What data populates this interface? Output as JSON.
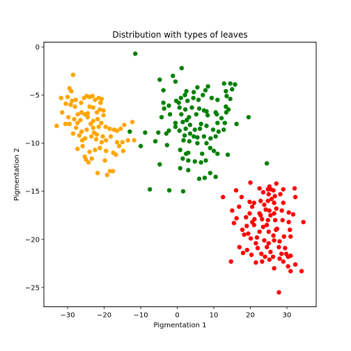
{
  "chart_data": {
    "type": "scatter",
    "title": "Distribution with types of leaves",
    "xlabel": "Pigmentation 1",
    "ylabel": "Pigmentation 2",
    "xlim": [
      -36.5,
      38
    ],
    "ylim": [
      -27,
      0.5
    ],
    "xticks": [
      -30,
      -20,
      -10,
      0,
      10,
      20,
      30
    ],
    "yticks": [
      0,
      -5,
      -10,
      -15,
      -20,
      -25
    ],
    "grid": false,
    "series": [
      {
        "color": "#ffa500",
        "points": [
          [
            -28.5,
            -2.9
          ],
          [
            -29.5,
            -4.3
          ],
          [
            -29,
            -4.6
          ],
          [
            -31.8,
            -5.3
          ],
          [
            -30,
            -5.2
          ],
          [
            -27.8,
            -5.5
          ],
          [
            -26.3,
            -5.8
          ],
          [
            -25.5,
            -5.3
          ],
          [
            -24.8,
            -5.1
          ],
          [
            -24,
            -5.2
          ],
          [
            -23.2,
            -5.1
          ],
          [
            -22.5,
            -5.5
          ],
          [
            -21.5,
            -5.3
          ],
          [
            -20.7,
            -5.4
          ],
          [
            -21.2,
            -6.5
          ],
          [
            -23,
            -6.3
          ],
          [
            -24.5,
            -6.9
          ],
          [
            -26.2,
            -6.8
          ],
          [
            -28,
            -6.2
          ],
          [
            -29.2,
            -6.0
          ],
          [
            -30.5,
            -5.9
          ],
          [
            -31.5,
            -6.8
          ],
          [
            -29.8,
            -7.3
          ],
          [
            -28.2,
            -7.5
          ],
          [
            -26.5,
            -7.6
          ],
          [
            -24.5,
            -7.3
          ],
          [
            -23,
            -7.7
          ],
          [
            -21.8,
            -7.5
          ],
          [
            -20.8,
            -7.9
          ],
          [
            -19.6,
            -8.3
          ],
          [
            -21.5,
            -8.3
          ],
          [
            -23,
            -8.4
          ],
          [
            -24.8,
            -8.6
          ],
          [
            -26.2,
            -8.8
          ],
          [
            -27.7,
            -8.4
          ],
          [
            -29.5,
            -8.0
          ],
          [
            -30.6,
            -8.0
          ],
          [
            -33,
            -8.2
          ],
          [
            -28.5,
            -9.0
          ],
          [
            -26.8,
            -9.2
          ],
          [
            -25.2,
            -9.5
          ],
          [
            -23.5,
            -9.3
          ],
          [
            -22.2,
            -9.6
          ],
          [
            -20.7,
            -9.9
          ],
          [
            -19.5,
            -9.7
          ],
          [
            -18.2,
            -9.3
          ],
          [
            -16.5,
            -8.7
          ],
          [
            -15.5,
            -8.5
          ],
          [
            -17.3,
            -8.6
          ],
          [
            -14.5,
            -8.1
          ],
          [
            -12.3,
            -7.8
          ],
          [
            -11.8,
            -9.7
          ],
          [
            -13.5,
            -9.7
          ],
          [
            -15,
            -9.9
          ],
          [
            -16.5,
            -9.9
          ],
          [
            -14.8,
            -10.8
          ],
          [
            -17.5,
            -11.0
          ],
          [
            -19.5,
            -10.8
          ],
          [
            -21.2,
            -10.5
          ],
          [
            -22.5,
            -10.7
          ],
          [
            -24,
            -10.9
          ],
          [
            -25.3,
            -11.4
          ],
          [
            -25.9,
            -10.3
          ],
          [
            -27.3,
            -10.6
          ],
          [
            -24.3,
            -12.0
          ],
          [
            -23.4,
            -11.6
          ],
          [
            -19.8,
            -11.8
          ],
          [
            -18.4,
            -12.9
          ],
          [
            -17.6,
            -12.9
          ],
          [
            -19.2,
            -13.3
          ],
          [
            -21.8,
            -13.1
          ],
          [
            -25,
            -11.7
          ],
          [
            -22,
            -9.1
          ],
          [
            -20.2,
            -7.1
          ],
          [
            -22,
            -6.8
          ],
          [
            -25.3,
            -7.0
          ],
          [
            -27.2,
            -7.0
          ],
          [
            -22.8,
            -8.9
          ],
          [
            -26,
            -9.7
          ],
          [
            -18.5,
            -8.5
          ],
          [
            -20.2,
            -6.6
          ],
          [
            -24,
            -6.2
          ],
          [
            -21,
            -5.8
          ],
          [
            -28.8,
            -5.6
          ],
          [
            -23.7,
            -8.0
          ],
          [
            -16.8,
            -11.2
          ],
          [
            -20.4,
            -9.3
          ],
          [
            -15.9,
            -10.3
          ],
          [
            -27.3,
            -7.9
          ]
        ]
      },
      {
        "color": "#008000",
        "points": [
          [
            -11.5,
            -0.7
          ],
          [
            1.2,
            -2.2
          ],
          [
            -1.2,
            -3.0
          ],
          [
            -0.5,
            -3.6
          ],
          [
            -4.8,
            -3.4
          ],
          [
            -3.8,
            -4.5
          ],
          [
            2.5,
            -4.6
          ],
          [
            4.5,
            -4.7
          ],
          [
            5.5,
            -4.2
          ],
          [
            7.7,
            -4.5
          ],
          [
            8.4,
            -4.1
          ],
          [
            12.8,
            -3.8
          ],
          [
            14.5,
            -3.8
          ],
          [
            15.8,
            -3.9
          ],
          [
            13.3,
            -4.6
          ],
          [
            15.0,
            -4.4
          ],
          [
            2.1,
            -5.0
          ],
          [
            1.0,
            -5.3
          ],
          [
            -0.3,
            -5.6
          ],
          [
            0.4,
            -5.8
          ],
          [
            2.8,
            -5.6
          ],
          [
            4.4,
            -5.3
          ],
          [
            5.8,
            -5.5
          ],
          [
            7.0,
            -5.0
          ],
          [
            9.4,
            -5.3
          ],
          [
            11.0,
            -5.5
          ],
          [
            13.5,
            -5.1
          ],
          [
            14.5,
            -5.4
          ],
          [
            -3.8,
            -5.8
          ],
          [
            -2.3,
            -6.1
          ],
          [
            -3.6,
            -6.4
          ],
          [
            0.6,
            -6.3
          ],
          [
            2.2,
            -6.5
          ],
          [
            4.0,
            -6.3
          ],
          [
            6.0,
            -6.4
          ],
          [
            7.3,
            -6.6
          ],
          [
            8.0,
            -6.7
          ],
          [
            10.5,
            -6.8
          ],
          [
            13.3,
            -6.2
          ],
          [
            14.0,
            -6.5
          ],
          [
            -4.3,
            -7.3
          ],
          [
            -2.0,
            -7.0
          ],
          [
            1.1,
            -7.0
          ],
          [
            3.2,
            -7.3
          ],
          [
            5.2,
            -7.0
          ],
          [
            8.3,
            -7.1
          ],
          [
            10.8,
            -7.0
          ],
          [
            12.1,
            -7.4
          ],
          [
            19.5,
            -7.3
          ],
          [
            -0.5,
            -7.9
          ],
          [
            1.5,
            -7.8
          ],
          [
            3.5,
            -8.1
          ],
          [
            6.5,
            -8.0
          ],
          [
            8.0,
            -8.2
          ],
          [
            11.0,
            -7.9
          ],
          [
            13.0,
            -7.9
          ],
          [
            -8.8,
            -8.9
          ],
          [
            -5.2,
            -8.9
          ],
          [
            -2.3,
            -8.7
          ],
          [
            -0.5,
            -8.3
          ],
          [
            0.6,
            -8.7
          ],
          [
            2.3,
            -8.5
          ],
          [
            4.8,
            -8.6
          ],
          [
            6.2,
            -8.5
          ],
          [
            9.8,
            -8.6
          ],
          [
            11.3,
            -8.8
          ],
          [
            12.7,
            -8.6
          ],
          [
            -3.0,
            -9.0
          ],
          [
            2.0,
            -9.2
          ],
          [
            3.5,
            -9.0
          ],
          [
            4.5,
            -9.3
          ],
          [
            5.5,
            -9.4
          ],
          [
            7.3,
            -9.3
          ],
          [
            9.1,
            -9.5
          ],
          [
            10.5,
            -9.3
          ],
          [
            -6.0,
            -9.8
          ],
          [
            1.7,
            -9.7
          ],
          [
            3.3,
            -9.8
          ],
          [
            5.5,
            -10.0
          ],
          [
            8.0,
            -10.0
          ],
          [
            -2.8,
            -10.2
          ],
          [
            9.0,
            -10.5
          ],
          [
            10.0,
            -10.8
          ],
          [
            0.8,
            -10.7
          ],
          [
            3.0,
            -11.0
          ],
          [
            2.4,
            -11.1
          ],
          [
            6.8,
            -11.1
          ],
          [
            11.0,
            -11.1
          ],
          [
            13.8,
            -11.2
          ],
          [
            1.5,
            -11.6
          ],
          [
            3.0,
            -11.8
          ],
          [
            4.8,
            -11.9
          ],
          [
            6.5,
            -12.0
          ],
          [
            7.8,
            -11.8
          ],
          [
            -4.8,
            -12.2
          ],
          [
            24.5,
            -12.1
          ],
          [
            0.8,
            -12.6
          ],
          [
            3.0,
            -12.8
          ],
          [
            9.0,
            -13.1
          ],
          [
            10.5,
            -13.5
          ],
          [
            6.0,
            -13.7
          ],
          [
            7.5,
            -13.6
          ],
          [
            -7.5,
            -14.8
          ],
          [
            -2.2,
            -14.9
          ],
          [
            1.6,
            -15.0
          ],
          [
            -13,
            -8.8
          ],
          [
            -10,
            -10.3
          ],
          [
            16.2,
            -8.0
          ],
          [
            13.4,
            -6.8
          ],
          [
            2.6,
            -7.6
          ]
        ]
      },
      {
        "color": "#ff0000",
        "points": [
          [
            20.0,
            -14.1
          ],
          [
            27.1,
            -14.2
          ],
          [
            25.2,
            -14.5
          ],
          [
            22.5,
            -14.7
          ],
          [
            24.8,
            -14.8
          ],
          [
            25.6,
            -14.8
          ],
          [
            26.3,
            -14.9
          ],
          [
            29.0,
            -14.8
          ],
          [
            32.1,
            -14.7
          ],
          [
            16.1,
            -14.9
          ],
          [
            23.5,
            -15.1
          ],
          [
            25.0,
            -15.3
          ],
          [
            26.7,
            -15.5
          ],
          [
            28.2,
            -15.3
          ],
          [
            32.3,
            -15.6
          ],
          [
            17.6,
            -15.6
          ],
          [
            12.5,
            -15.6
          ],
          [
            19.8,
            -16.1
          ],
          [
            21.0,
            -16.2
          ],
          [
            22.8,
            -16.0
          ],
          [
            24.8,
            -16.0
          ],
          [
            26.5,
            -16.2
          ],
          [
            29.0,
            -16.2
          ],
          [
            20.5,
            -16.6
          ],
          [
            24.2,
            -16.9
          ],
          [
            25.2,
            -17.0
          ],
          [
            27.1,
            -16.8
          ],
          [
            28.6,
            -17.0
          ],
          [
            16.9,
            -16.6
          ],
          [
            15.0,
            -17.0
          ],
          [
            19.8,
            -17.3
          ],
          [
            22.5,
            -17.3
          ],
          [
            25.5,
            -17.5
          ],
          [
            26.5,
            -17.3
          ],
          [
            30.5,
            -17.2
          ],
          [
            31.7,
            -17.4
          ],
          [
            16.2,
            -17.8
          ],
          [
            18.8,
            -17.7
          ],
          [
            21.1,
            -17.9
          ],
          [
            23.2,
            -17.9
          ],
          [
            24.8,
            -18.0
          ],
          [
            26.8,
            -18.0
          ],
          [
            28.8,
            -18.0
          ],
          [
            30.5,
            -18.2
          ],
          [
            34.5,
            -18.2
          ],
          [
            15.5,
            -18.3
          ],
          [
            19.0,
            -18.6
          ],
          [
            21.0,
            -18.5
          ],
          [
            23.5,
            -18.7
          ],
          [
            27.3,
            -18.9
          ],
          [
            17.8,
            -19.0
          ],
          [
            22.5,
            -19.2
          ],
          [
            25.0,
            -19.2
          ],
          [
            26.3,
            -19.6
          ],
          [
            29.2,
            -19.7
          ],
          [
            31.0,
            -19.7
          ],
          [
            20.1,
            -19.9
          ],
          [
            18.3,
            -19.5
          ],
          [
            23.8,
            -20.1
          ],
          [
            25.0,
            -20.4
          ],
          [
            26.5,
            -20.1
          ],
          [
            28.0,
            -20.2
          ],
          [
            21.5,
            -20.4
          ],
          [
            17.0,
            -20.8
          ],
          [
            22.0,
            -20.9
          ],
          [
            24.5,
            -20.8
          ],
          [
            27.8,
            -20.8
          ],
          [
            29.5,
            -20.9
          ],
          [
            19.1,
            -21.1
          ],
          [
            23.0,
            -21.5
          ],
          [
            25.5,
            -21.3
          ],
          [
            26.2,
            -21.8
          ],
          [
            28.5,
            -21.5
          ],
          [
            29.8,
            -21.5
          ],
          [
            30.3,
            -21.8
          ],
          [
            31.0,
            -21.7
          ],
          [
            18.0,
            -21.4
          ],
          [
            20.3,
            -21.6
          ],
          [
            24.0,
            -21.8
          ],
          [
            28.0,
            -22.0
          ],
          [
            14.7,
            -22.3
          ],
          [
            21.5,
            -22.4
          ],
          [
            23.2,
            -22.3
          ],
          [
            29.0,
            -22.3
          ],
          [
            25.2,
            -22.1
          ],
          [
            32.3,
            -22.6
          ],
          [
            30.3,
            -22.8
          ],
          [
            26.5,
            -23.0
          ],
          [
            34.0,
            -23.3
          ],
          [
            31.0,
            -23.3
          ],
          [
            27.8,
            -25.5
          ],
          [
            24.5,
            -18.5
          ],
          [
            22.8,
            -17.5
          ],
          [
            21.8,
            -19.8
          ],
          [
            27.0,
            -19.0
          ],
          [
            19.4,
            -19.4
          ],
          [
            25.8,
            -15.8
          ],
          [
            23.8,
            -16.4
          ],
          [
            20.5,
            -18.2
          ],
          [
            30.8,
            -19.0
          ]
        ]
      }
    ]
  }
}
